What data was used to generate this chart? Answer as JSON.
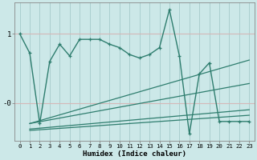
{
  "xlabel": "Humidex (Indice chaleur)",
  "bg_color": "#cce8e8",
  "line_color": "#2e7d6e",
  "grid_color_v": "#aacfcf",
  "grid_color_h": "#d4b8b8",
  "xlim": [
    -0.5,
    23.5
  ],
  "ylim": [
    -0.55,
    1.45
  ],
  "series1_x": [
    0,
    1,
    2,
    3,
    4,
    5,
    6,
    7,
    8,
    9,
    10,
    11,
    12,
    13,
    14,
    15,
    16,
    17,
    18,
    19,
    20,
    21,
    22,
    23
  ],
  "series1_y": [
    1.0,
    0.72,
    -0.3,
    0.6,
    0.85,
    0.68,
    0.92,
    0.92,
    0.92,
    0.85,
    0.8,
    0.7,
    0.65,
    0.7,
    0.8,
    1.35,
    0.68,
    -0.45,
    0.42,
    0.58,
    -0.27,
    -0.27,
    -0.27,
    -0.27
  ],
  "series2_x": [
    1,
    2,
    23
  ],
  "series2_y": [
    -0.3,
    -0.38,
    -0.27
  ],
  "trend1_x": [
    1,
    23
  ],
  "trend1_y": [
    -0.3,
    0.6
  ],
  "trend2_x": [
    1,
    23
  ],
  "trend2_y": [
    -0.3,
    0.3
  ],
  "trend3_x": [
    1,
    23
  ],
  "trend3_y": [
    -0.38,
    -0.1
  ],
  "trend4_x": [
    1,
    23
  ],
  "trend4_y": [
    -0.38,
    -0.2
  ]
}
